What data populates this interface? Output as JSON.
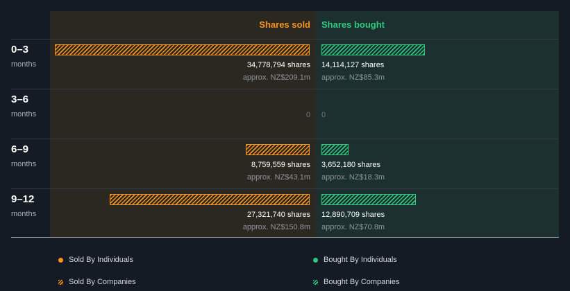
{
  "headers": {
    "sold": "Shares sold",
    "bought": "Shares bought"
  },
  "colors": {
    "sold": "#f7931e",
    "bought": "#2dc97e"
  },
  "chart_data": {
    "type": "bar",
    "orientation": "horizontal-diverging",
    "categories": [
      "0–3 months",
      "3–6 months",
      "6–9 months",
      "9–12 months"
    ],
    "series": [
      {
        "name": "Shares sold",
        "values": [
          34778794,
          0,
          8759559,
          27321740
        ]
      },
      {
        "name": "Shares bought",
        "values": [
          14114127,
          0,
          3652180,
          12890709
        ]
      }
    ]
  },
  "rows": [
    {
      "period": "0–3",
      "unit": "months",
      "sold": {
        "shares": "34,778,794 shares",
        "approx": "approx. NZ$209.1m"
      },
      "bought": {
        "shares": "14,114,127 shares",
        "approx": "approx. NZ$85.3m"
      }
    },
    {
      "period": "3–6",
      "unit": "months",
      "sold": {
        "zero": "0"
      },
      "bought": {
        "zero": "0"
      }
    },
    {
      "period": "6–9",
      "unit": "months",
      "sold": {
        "shares": "8,759,559 shares",
        "approx": "approx. NZ$43.1m"
      },
      "bought": {
        "shares": "3,652,180 shares",
        "approx": "approx. NZ$18.3m"
      }
    },
    {
      "period": "9–12",
      "unit": "months",
      "sold": {
        "shares": "27,321,740 shares",
        "approx": "approx. NZ$150.8m"
      },
      "bought": {
        "shares": "12,890,709 shares",
        "approx": "approx. NZ$70.8m"
      }
    }
  ],
  "legend": {
    "sold_individuals": "Sold By Individuals",
    "sold_companies": "Sold By Companies",
    "bought_individuals": "Bought By Individuals",
    "bought_companies": "Bought By Companies"
  }
}
